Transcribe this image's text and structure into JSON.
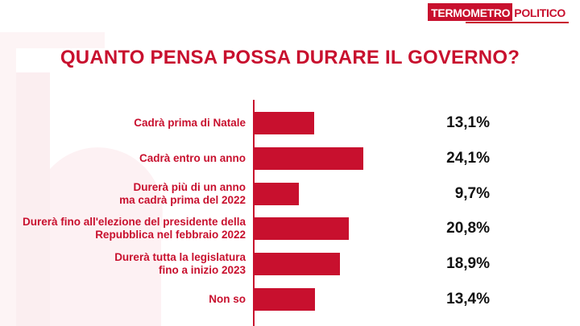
{
  "header": {
    "logo_part1": "TERMOMETRO",
    "logo_part2": "POLITICO"
  },
  "colors": {
    "accent": "#c8102e",
    "value_text": "#111111",
    "background": "#ffffff"
  },
  "chart_data": {
    "type": "bar",
    "orientation": "horizontal",
    "title": "QUANTO PENSA POSSA DURARE IL GOVERNO?",
    "categories": [
      [
        "Cadrà prima di Natale"
      ],
      [
        "Cadrà entro un anno"
      ],
      [
        "Durerà più di un anno",
        "ma cadrà prima del 2022"
      ],
      [
        "Durerà fino all'elezione del presidente della",
        "Repubblica nel febbraio 2022"
      ],
      [
        "Durerà tutta la legislatura",
        "fino a inizio 2023"
      ],
      [
        "Non so"
      ]
    ],
    "values": [
      13.1,
      24.1,
      9.7,
      20.8,
      18.9,
      13.4
    ],
    "value_labels": [
      "13,1%",
      "24,1%",
      "9,7%",
      "20,8%",
      "18,9%",
      "13,4%"
    ],
    "unit": "%",
    "xlim": [
      0,
      100
    ],
    "grid": false
  }
}
